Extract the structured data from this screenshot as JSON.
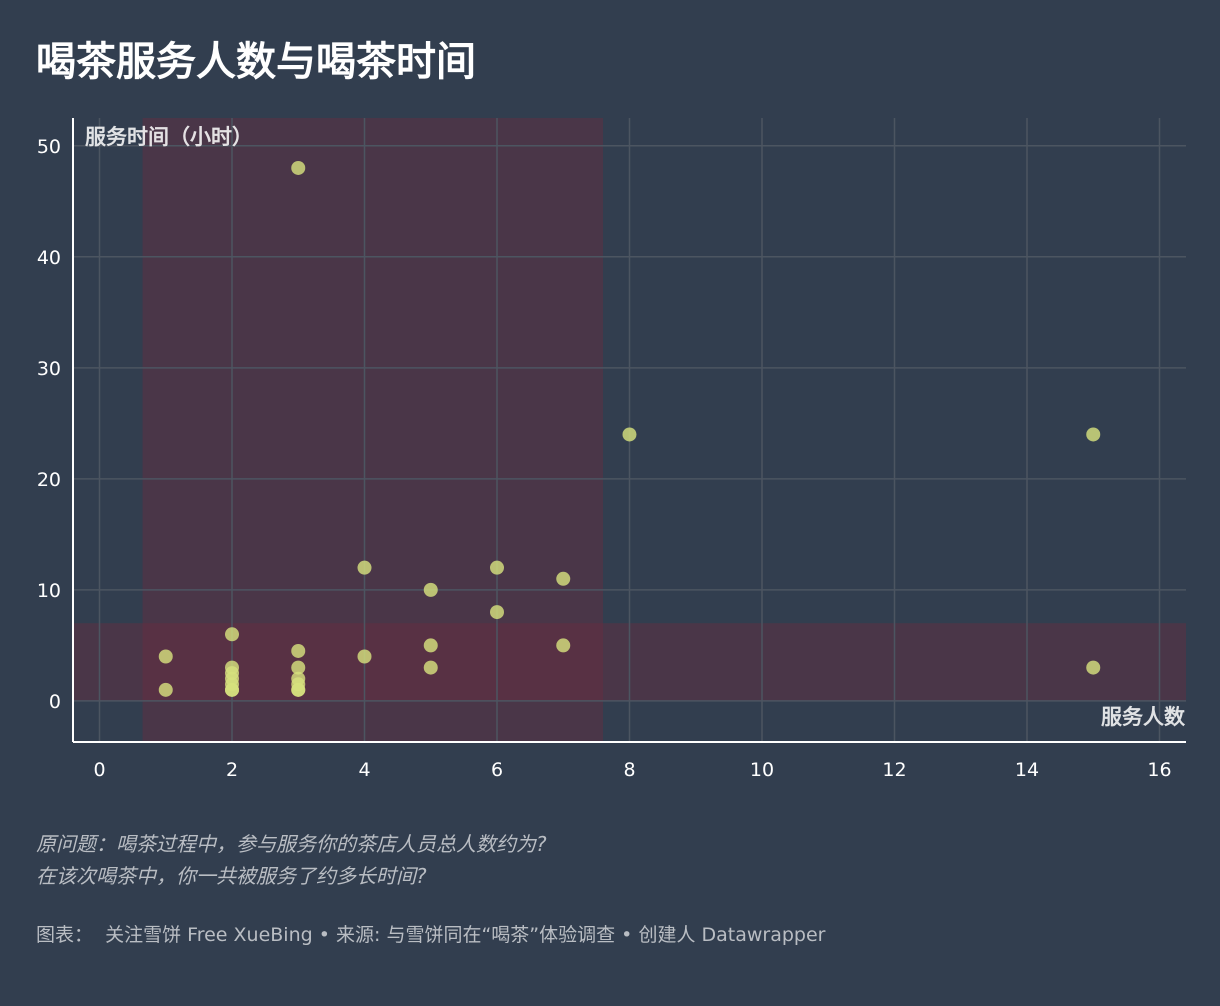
{
  "title": "喝茶服务人数与喝茶时间",
  "notes": {
    "line1": "原问题：喝茶过程中，参与服务你的茶店人员总人数约为?",
    "line2": "在该次喝茶中，你一共被服务了约多长时间?"
  },
  "footer": {
    "chart_label": "图表：",
    "chart_author": "关注雪饼 Free XueBing",
    "sep1": "•",
    "source_label": "来源:",
    "source": "与雪饼同在“喝茶”体验调查",
    "sep2": "•",
    "creator": "创建人 Datawrapper"
  },
  "chart_data": {
    "type": "scatter",
    "xlabel": "服务人数",
    "ylabel": "服务时间（小时）",
    "xlim": [
      -0.4,
      16.4
    ],
    "ylim": [
      -3.7,
      52.5
    ],
    "xticks": [
      0,
      2,
      4,
      6,
      8,
      10,
      12,
      14,
      16
    ],
    "yticks": [
      0,
      10,
      20,
      30,
      40,
      50
    ],
    "grid": true,
    "colors": {
      "point": "#d6e17e",
      "highlight_band": "#6b2c41",
      "background": "#323e4f",
      "grid": "#4c5561"
    },
    "highlight_regions": [
      {
        "x_from": 0.65,
        "x_to": 7.6,
        "y_from": -3.7,
        "y_to": 52.5
      },
      {
        "x_from": -0.4,
        "x_to": 16.4,
        "y_from": 0,
        "y_to": 7
      }
    ],
    "points": [
      {
        "x": 1,
        "y": 4
      },
      {
        "x": 1,
        "y": 1
      },
      {
        "x": 2,
        "y": 6
      },
      {
        "x": 2,
        "y": 3
      },
      {
        "x": 2,
        "y": 2.5
      },
      {
        "x": 2,
        "y": 2
      },
      {
        "x": 2,
        "y": 1.5
      },
      {
        "x": 2,
        "y": 1
      },
      {
        "x": 2,
        "y": 1
      },
      {
        "x": 3,
        "y": 48
      },
      {
        "x": 3,
        "y": 4.5
      },
      {
        "x": 3,
        "y": 3
      },
      {
        "x": 3,
        "y": 2
      },
      {
        "x": 3,
        "y": 1.5
      },
      {
        "x": 3,
        "y": 1
      },
      {
        "x": 3,
        "y": 1
      },
      {
        "x": 4,
        "y": 12
      },
      {
        "x": 4,
        "y": 4
      },
      {
        "x": 5,
        "y": 10
      },
      {
        "x": 5,
        "y": 5
      },
      {
        "x": 5,
        "y": 3
      },
      {
        "x": 6,
        "y": 12
      },
      {
        "x": 6,
        "y": 8
      },
      {
        "x": 7,
        "y": 11
      },
      {
        "x": 7,
        "y": 5
      },
      {
        "x": 8,
        "y": 24
      },
      {
        "x": 15,
        "y": 24
      },
      {
        "x": 15,
        "y": 3
      }
    ]
  }
}
